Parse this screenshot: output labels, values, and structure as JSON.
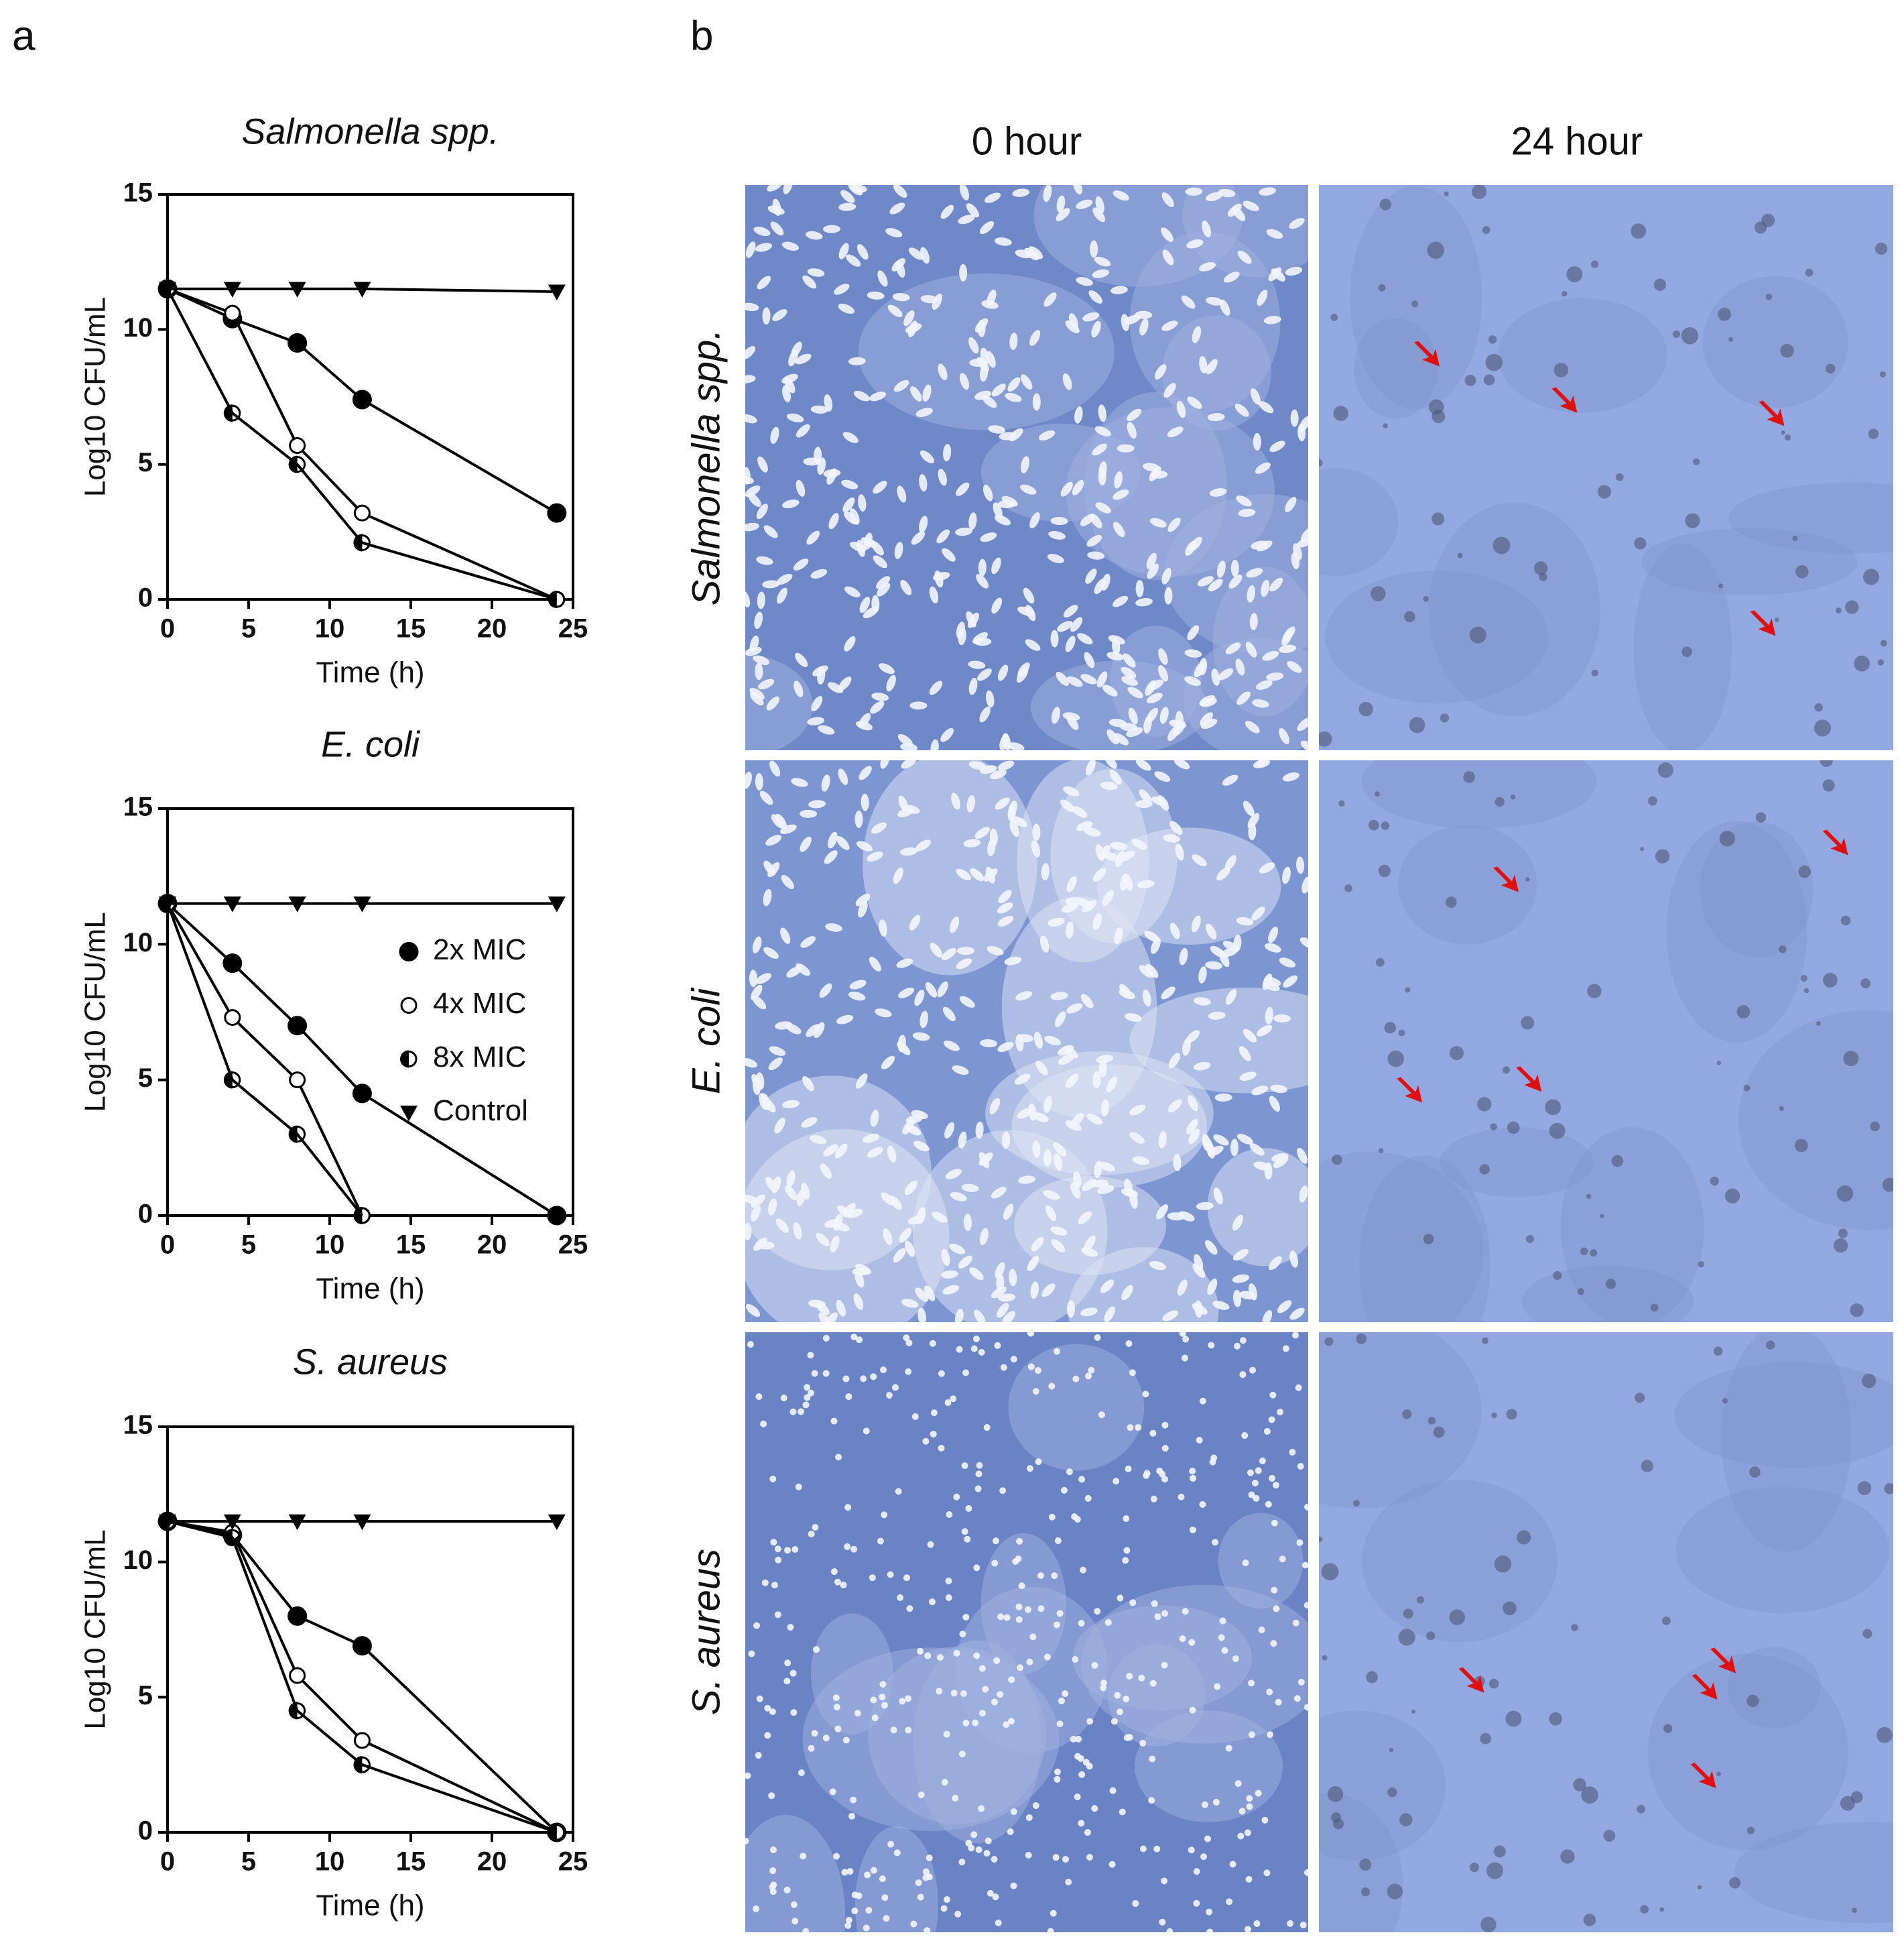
{
  "panel_labels": [
    "a",
    "b"
  ],
  "micrographs": {
    "columns": [
      "0 hour",
      "24 hour"
    ],
    "rows": [
      "Salmonella spp.",
      "E. coli",
      "S. aureus"
    ]
  },
  "chart_data": [
    {
      "type": "line",
      "title": "Salmonella spp.",
      "xlabel": "Time (h)",
      "ylabel": "Log10 CFU/mL",
      "x": [
        0,
        4,
        8,
        12,
        24
      ],
      "xlim": [
        0,
        25
      ],
      "xticks": [
        0,
        5,
        10,
        15,
        20,
        25
      ],
      "ylim": [
        0,
        15
      ],
      "yticks": [
        0,
        5,
        10,
        15
      ],
      "series": [
        {
          "marker": "filled",
          "color": "#000000",
          "values": [
            11.5,
            10.4,
            9.5,
            7.4,
            3.2
          ]
        },
        {
          "marker": "open",
          "color": "#000000",
          "values": [
            11.5,
            10.6,
            5.7,
            3.2,
            0
          ]
        },
        {
          "marker": "half",
          "color": "#000000",
          "values": [
            11.5,
            6.9,
            5.0,
            2.1,
            0
          ]
        },
        {
          "marker": "triangle",
          "color": "#000000",
          "values": [
            11.5,
            11.5,
            11.5,
            11.5,
            11.4
          ]
        }
      ]
    },
    {
      "type": "line",
      "title": "E. coli",
      "xlabel": "Time (h)",
      "ylabel": "Log10 CFU/mL",
      "x": [
        0,
        4,
        8,
        12,
        24
      ],
      "xlim": [
        0,
        25
      ],
      "xticks": [
        0,
        5,
        10,
        15,
        20,
        25
      ],
      "ylim": [
        0,
        15
      ],
      "yticks": [
        0,
        5,
        10,
        15
      ],
      "legend": "center right",
      "series": [
        {
          "name": "2x MIC",
          "marker": "filled",
          "color": "#000000",
          "values": [
            11.5,
            9.3,
            7.0,
            4.5,
            0
          ]
        },
        {
          "name": "4x MIC",
          "marker": "open",
          "color": "#000000",
          "values": [
            11.5,
            7.3,
            5.0,
            0,
            null
          ]
        },
        {
          "name": "8x MIC",
          "marker": "half",
          "color": "#000000",
          "values": [
            11.5,
            5.0,
            3.0,
            0,
            null
          ]
        },
        {
          "name": "Control",
          "marker": "triangle",
          "color": "#000000",
          "values": [
            11.5,
            11.5,
            11.5,
            11.5,
            11.5
          ]
        }
      ]
    },
    {
      "type": "line",
      "title": "S. aureus",
      "xlabel": "Time (h)",
      "ylabel": "Log10 CFU/mL",
      "x": [
        0,
        4,
        8,
        12,
        24
      ],
      "xlim": [
        0,
        25
      ],
      "xticks": [
        0,
        5,
        10,
        15,
        20,
        25
      ],
      "ylim": [
        0,
        15
      ],
      "yticks": [
        0,
        5,
        10,
        15
      ],
      "series": [
        {
          "marker": "filled",
          "color": "#000000",
          "values": [
            11.5,
            11.0,
            8.0,
            6.9,
            0
          ]
        },
        {
          "marker": "open",
          "color": "#000000",
          "values": [
            11.5,
            11.1,
            5.8,
            3.4,
            0
          ]
        },
        {
          "marker": "half",
          "color": "#000000",
          "values": [
            11.5,
            10.9,
            4.5,
            2.5,
            0
          ]
        },
        {
          "marker": "triangle",
          "color": "#000000",
          "values": [
            11.5,
            11.5,
            11.5,
            11.5,
            11.5
          ]
        }
      ]
    }
  ]
}
